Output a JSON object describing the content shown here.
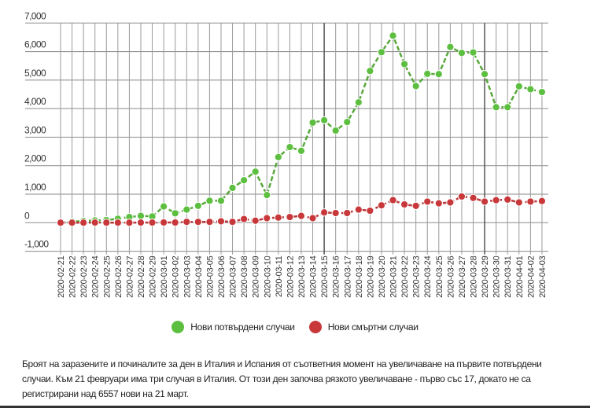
{
  "chart_data": {
    "type": "line",
    "title": "",
    "xlabel": "",
    "ylabel": "",
    "ylim": [
      -1000,
      7000
    ],
    "yticks": [
      -1000,
      0,
      1000,
      2000,
      3000,
      4000,
      5000,
      6000,
      7000
    ],
    "ytick_labels": [
      "-1,000",
      "0",
      "1,000",
      "2,000",
      "3,000",
      "4,000",
      "5,000",
      "6,000",
      "7,000"
    ],
    "grid": true,
    "legend_position": "bottom",
    "x": [
      "2020-02-21",
      "2020-02-22",
      "2020-02-23",
      "2020-02-24",
      "2020-02-25",
      "2020-02-26",
      "2020-02-27",
      "2020-02-28",
      "2020-02-29",
      "2020-03-01",
      "2020-03-02",
      "2020-03-03",
      "2020-03-04",
      "2020-03-05",
      "2020-03-06",
      "2020-03-07",
      "2020-03-08",
      "2020-03-09",
      "2020-03-10",
      "2020-03-11",
      "2020-03-12",
      "2020-03-13",
      "2020-03-14",
      "2020-03-15",
      "2020-03-16",
      "2020-03-17",
      "2020-03-18",
      "2020-03-19",
      "2020-03-20",
      "2020-03-21",
      "2020-03-22",
      "2020-03-23",
      "2020-03-24",
      "2020-03-25",
      "2020-03-26",
      "2020-03-27",
      "2020-03-28",
      "2020-03-29",
      "2020-03-30",
      "2020-03-31",
      "2020-04-01",
      "2020-04-02",
      "2020-04-03"
    ],
    "series": [
      {
        "name": "Нови потвърдени случаи",
        "color": "#5cbf3f",
        "values": [
          17,
          40,
          60,
          80,
          90,
          140,
          200,
          240,
          220,
          570,
          330,
          460,
          590,
          770,
          770,
          1220,
          1490,
          1790,
          970,
          2300,
          2650,
          2520,
          3510,
          3590,
          3230,
          3530,
          4220,
          5320,
          5980,
          6557,
          5560,
          4790,
          5220,
          5210,
          6160,
          5950,
          5970,
          5210,
          4050,
          4050,
          4780,
          4680,
          4580
        ]
      },
      {
        "name": "Нови смъртни случаи",
        "color": "#c8383a",
        "values": [
          1,
          1,
          1,
          4,
          3,
          2,
          1,
          5,
          4,
          8,
          6,
          30,
          30,
          30,
          50,
          30,
          130,
          70,
          160,
          180,
          200,
          240,
          160,
          360,
          340,
          340,
          460,
          420,
          610,
          790,
          640,
          590,
          740,
          680,
          710,
          920,
          870,
          740,
          790,
          810,
          710,
          740,
          760
        ]
      }
    ]
  },
  "legend": {
    "items": [
      {
        "label": "Нови потвърдени случаи",
        "color": "#5cbf3f"
      },
      {
        "label": "Нови смъртни случаи",
        "color": "#c8383a"
      }
    ]
  },
  "caption": "Броят на заразените и починалите за ден в Италия и Испания от съответния момент на увеличаване на първите потвърдени случаи. Към 21 февруари има три случая в Италия. От този ден започва рязкото увеличаване - първо със 17, докато не са регистрирани над 6557 нови на 21 март."
}
